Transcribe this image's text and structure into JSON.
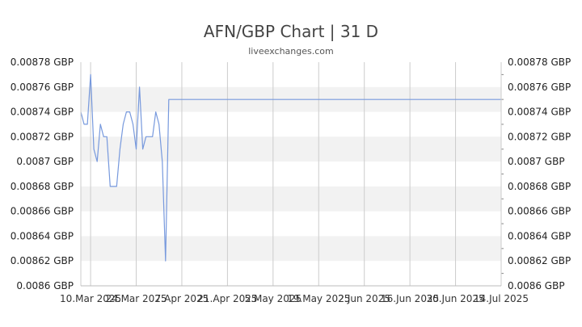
{
  "chart_data": {
    "type": "line",
    "title": "AFN/GBP Chart | 31 D",
    "subtitle": "liveexchanges.com",
    "ylim": [
      0.0086,
      0.00878
    ],
    "y_ticks": [
      {
        "value": 0.00878,
        "label": "0.00878 GBP"
      },
      {
        "value": 0.00876,
        "label": "0.00876 GBP"
      },
      {
        "value": 0.00874,
        "label": "0.00874 GBP"
      },
      {
        "value": 0.00872,
        "label": "0.00872 GBP"
      },
      {
        "value": 0.0087,
        "label": "0.0087 GBP"
      },
      {
        "value": 0.00868,
        "label": "0.00868 GBP"
      },
      {
        "value": 0.00866,
        "label": "0.00866 GBP"
      },
      {
        "value": 0.00864,
        "label": "0.00864 GBP"
      },
      {
        "value": 0.00862,
        "label": "0.00862 GBP"
      },
      {
        "value": 0.0086,
        "label": "0.0086 GBP"
      }
    ],
    "x_ticks": [
      "10.Mar 2025",
      "24.Mar 2025",
      "7.Apr 2025",
      "21.Apr 2025",
      "5.May 2025",
      "19.May 2025",
      "2.Jun 2025",
      "16.Jun 2025",
      "30.Jun 2025",
      "14.Jul 2025"
    ],
    "xlim": [
      "2025-03-07",
      "2025-07-14"
    ],
    "x_tick_dates": [
      "2025-03-10",
      "2025-03-24",
      "2025-04-07",
      "2025-04-21",
      "2025-05-05",
      "2025-05-19",
      "2025-06-02",
      "2025-06-16",
      "2025-06-30",
      "2025-07-14"
    ],
    "grid": true,
    "colors": {
      "line": "#7799dd",
      "band": "#f2f2f2",
      "grid": "#cccccc"
    },
    "series": [
      {
        "x": [
          "2025-03-07",
          "2025-03-08",
          "2025-03-09",
          "2025-03-10",
          "2025-03-11",
          "2025-03-12",
          "2025-03-13",
          "2025-03-14",
          "2025-03-15",
          "2025-03-16",
          "2025-03-17",
          "2025-03-18",
          "2025-03-19",
          "2025-03-20",
          "2025-03-21",
          "2025-03-22",
          "2025-03-23",
          "2025-03-24",
          "2025-03-25",
          "2025-03-26",
          "2025-03-27",
          "2025-03-28",
          "2025-03-29",
          "2025-03-30",
          "2025-03-31",
          "2025-04-01",
          "2025-04-02",
          "2025-04-03",
          "2025-04-04",
          "2025-04-05",
          "2025-04-06",
          "2025-07-14"
        ],
        "values": [
          0.00874,
          0.00873,
          0.00873,
          0.00877,
          0.00871,
          0.0087,
          0.00873,
          0.00872,
          0.00872,
          0.00868,
          0.00868,
          0.00868,
          0.00871,
          0.00873,
          0.00874,
          0.00874,
          0.00873,
          0.00871,
          0.00876,
          0.00871,
          0.00872,
          0.00872,
          0.00872,
          0.00874,
          0.00873,
          0.0087,
          0.00862,
          0.00875,
          0.00875,
          0.00875,
          0.00875,
          0.00875
        ]
      }
    ]
  }
}
